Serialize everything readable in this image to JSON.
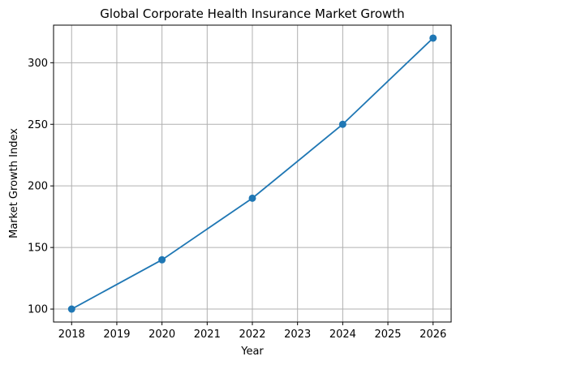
{
  "chart_data": {
    "type": "line",
    "title": "Global Corporate Health Insurance Market Growth",
    "x_label": "Year",
    "y_label": "Market Growth Index",
    "x": [
      2018,
      2020,
      2022,
      2024,
      2026
    ],
    "series": [
      {
        "name": "Market Growth Index",
        "color": "#1f77b4",
        "values": [
          100,
          140,
          190,
          250,
          320
        ]
      }
    ],
    "xlim": [
      2017.6,
      2026.4
    ],
    "ylim": [
      89.5,
      330.5
    ],
    "xticks": [
      2018,
      2019,
      2020,
      2021,
      2022,
      2023,
      2024,
      2025,
      2026
    ],
    "yticks": [
      100,
      150,
      200,
      250,
      300
    ],
    "grid": true,
    "markers": true
  }
}
